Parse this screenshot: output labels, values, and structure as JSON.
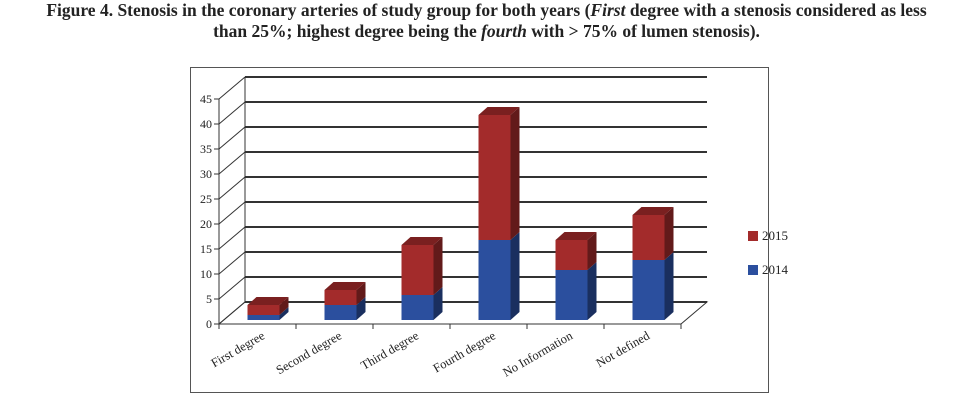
{
  "caption": {
    "prefix": "Figure 4. Stenosis in the coronary arteries of study group for both years (",
    "first_word": "First",
    "middle": " degree with a stenosis considered as less",
    "line2_start": "than 25%; highest degree being the ",
    "fourth_word": "fourth",
    "line2_end": " with > 75% of lumen stenosis)."
  },
  "chart_data": {
    "type": "bar",
    "stacked": true,
    "three_d": true,
    "categories": [
      "First degree",
      "Second degree",
      "Third degree",
      "Fourth degree",
      "No Information",
      "Not defined"
    ],
    "series": [
      {
        "name": "2014",
        "color": "#2B4F9E",
        "values": [
          1,
          3,
          5,
          16,
          10,
          12
        ]
      },
      {
        "name": "2015",
        "color": "#A32B2B",
        "values": [
          2,
          3,
          10,
          25,
          6,
          9
        ]
      }
    ],
    "yticks": [
      0,
      5,
      10,
      15,
      20,
      25,
      30,
      35,
      40,
      45
    ],
    "ylim": [
      0,
      45
    ],
    "grid": true,
    "legend_position": "right"
  }
}
